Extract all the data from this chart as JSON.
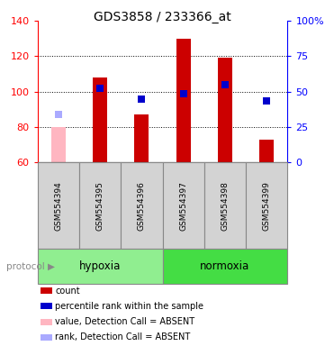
{
  "title": "GDS3858 / 233366_at",
  "samples": [
    "GSM554394",
    "GSM554395",
    "GSM554396",
    "GSM554397",
    "GSM554398",
    "GSM554399"
  ],
  "bar_values": [
    80,
    108,
    87,
    130,
    119,
    73
  ],
  "bar_colors": [
    "#ffb6c1",
    "#cc0000",
    "#cc0000",
    "#cc0000",
    "#cc0000",
    "#cc0000"
  ],
  "rank_values": [
    87,
    102,
    96,
    99,
    104,
    95
  ],
  "rank_colors": [
    "#aaaaff",
    "#0000cc",
    "#0000cc",
    "#0000cc",
    "#0000cc",
    "#0000cc"
  ],
  "ylim_left": [
    60,
    140
  ],
  "ylim_right": [
    0,
    100
  ],
  "yticks_left": [
    60,
    80,
    100,
    120,
    140
  ],
  "yticks_right": [
    0,
    25,
    50,
    75,
    100
  ],
  "yticklabels_right": [
    "0",
    "25",
    "50",
    "75",
    "100%"
  ],
  "groups": [
    {
      "label": "hypoxia",
      "color": "#90ee90",
      "light_color": "#c8f0c8"
    },
    {
      "label": "normoxia",
      "color": "#44dd44",
      "light_color": "#44dd44"
    }
  ],
  "legend_items": [
    {
      "color": "#cc0000",
      "label": "count"
    },
    {
      "color": "#0000cc",
      "label": "percentile rank within the sample"
    },
    {
      "color": "#ffb6c1",
      "label": "value, Detection Call = ABSENT"
    },
    {
      "color": "#aaaaff",
      "label": "rank, Detection Call = ABSENT"
    }
  ],
  "bg_color": "#d3d3d3",
  "bar_width": 0.35,
  "rank_marker_size": 30
}
